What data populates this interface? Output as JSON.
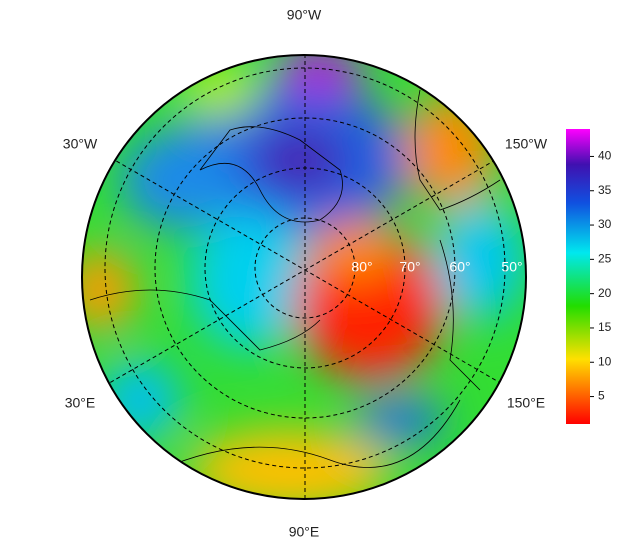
{
  "map": {
    "lon_labels": [
      "90°W",
      "150°W",
      "150°E",
      "90°E",
      "30°E",
      "30°W"
    ],
    "lat_labels": [
      "80°",
      "70°",
      "60°",
      "50°"
    ],
    "colorbar": {
      "range": [
        1,
        44
      ],
      "ticks": [
        5,
        10,
        15,
        20,
        25,
        30,
        35,
        40
      ]
    }
  }
}
